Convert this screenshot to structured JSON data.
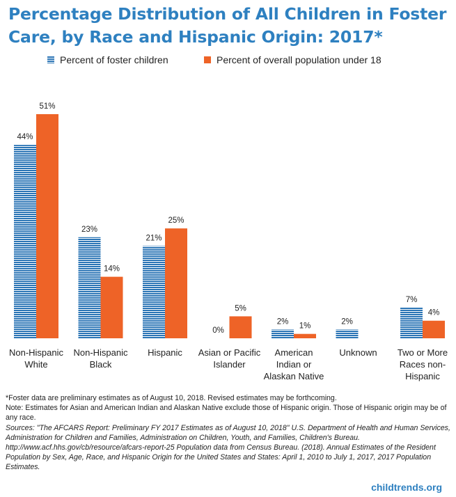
{
  "title": "Percentage Distribution of All Children in Foster Care, by Race and Hispanic Origin: 2017*",
  "legend": {
    "foster": "Percent of foster children",
    "population": "Percent of overall population under 18"
  },
  "colors": {
    "foster": "#2a74b5",
    "population": "#ee6327",
    "title": "#2e80c0"
  },
  "chart_data": {
    "type": "bar",
    "title": "Percentage Distribution of All Children in Foster Care, by Race and Hispanic Origin: 2017*",
    "xlabel": "",
    "ylabel": "",
    "ylim": [
      0,
      51
    ],
    "categories": [
      [
        "Non-Hispanic",
        "White"
      ],
      [
        "Non-Hispanic",
        "Black"
      ],
      [
        "Hispanic"
      ],
      [
        "Asian or Pacific",
        "Islander"
      ],
      [
        "American",
        "Indian or",
        "Alaskan Native"
      ],
      [
        "Unknown"
      ],
      [
        "Two or More",
        "Races non-",
        "Hispanic"
      ]
    ],
    "series": [
      {
        "name": "Percent of foster children",
        "values": [
          44,
          23,
          21,
          0,
          2,
          2,
          7
        ],
        "labels": [
          "44%",
          "23%",
          "21%",
          "0%",
          "2%",
          "2%",
          "7%"
        ]
      },
      {
        "name": "Percent of overall population under 18",
        "values": [
          51,
          14,
          25,
          5,
          1,
          null,
          4
        ],
        "labels": [
          "51%",
          "14%",
          "25%",
          "5%",
          "1%",
          "",
          "4%"
        ]
      }
    ]
  },
  "notes": {
    "line1": "*Foster data are preliminary estimates as of August 10, 2018.  Revised estimates may be forthcoming.",
    "line2": "Note: Estimates for Asian and American Indian and Alaskan Native exclude those of Hispanic origin.  Those of Hispanic origin may be of any race.",
    "sources": "Sources: \"The AFCARS Report: Preliminary FY 2017 Estimates as of August 10, 2018\"  U.S. Department of Health and Human Services, Administration for Children and Families, Administration on  Children, Youth, and Families, Children's Bureau. http://www.acf.hhs.gov/cb/resource/afcars-report-25  Population data from Census Bureau. (2018).  Annual Estimates of the Resident Population by Sex, Age, Race, and Hispanic Origin for the United States and States: April 1, 2010  to July 1, 2017, 2017 Population Estimates."
  },
  "brand": "childtrends.org"
}
